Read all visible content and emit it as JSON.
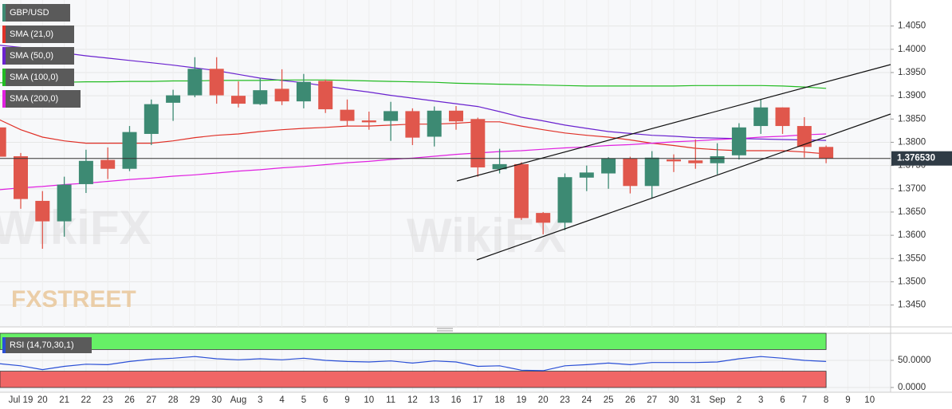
{
  "chart_data": [
    {
      "type": "candlestick",
      "title": "GBP/USD",
      "categories": [
        null,
        "Jul 19",
        "20",
        "21",
        "22",
        "23",
        "26",
        "27",
        "28",
        "29",
        "30",
        "Aug",
        "3",
        "4",
        "5",
        "6",
        "9",
        "10",
        "11",
        "12",
        "13",
        "16",
        "17",
        "18",
        "19",
        "20",
        "23",
        "24",
        "25",
        "26",
        "27",
        "30",
        "31",
        "Sep",
        "2",
        "3",
        "6",
        "7",
        "8",
        "9",
        "10"
      ],
      "open": [
        1.3832,
        1.377,
        1.3674,
        1.363,
        1.371,
        1.3762,
        1.3743,
        1.3818,
        1.3885,
        1.3901,
        1.3958,
        1.39,
        1.3882,
        1.3915,
        1.3888,
        1.3932,
        1.387,
        1.3847,
        1.3846,
        1.3867,
        1.3812,
        1.3868,
        1.385,
        1.3742,
        1.3753,
        1.3648,
        1.3627,
        1.3724,
        1.3733,
        1.3765,
        1.3706,
        1.3763,
        1.3761,
        1.3755,
        1.3772,
        1.3835,
        1.3875,
        1.3835,
        1.379,
        null,
        null
      ],
      "high": [
        1.386,
        1.3777,
        1.3695,
        1.3726,
        1.3784,
        1.3789,
        1.3835,
        1.3892,
        1.3913,
        1.3983,
        1.3983,
        1.3931,
        1.3938,
        1.3957,
        1.3947,
        1.3935,
        1.3892,
        1.3866,
        1.3887,
        1.3873,
        1.3877,
        1.3878,
        1.3853,
        1.3786,
        1.3757,
        1.365,
        1.3733,
        1.375,
        1.3768,
        1.3769,
        1.3781,
        1.3774,
        1.3806,
        1.3798,
        1.3841,
        1.3892,
        1.3875,
        1.3854,
        1.3793,
        null,
        null
      ],
      "low": [
        1.376,
        1.3657,
        1.3571,
        1.3597,
        1.3691,
        1.3721,
        1.3738,
        1.3794,
        1.3846,
        1.3897,
        1.3883,
        1.3875,
        1.388,
        1.388,
        1.3873,
        1.3863,
        1.3835,
        1.3827,
        1.3803,
        1.3794,
        1.3791,
        1.3827,
        1.3726,
        1.3733,
        1.3633,
        1.3602,
        1.3611,
        1.3695,
        1.37,
        1.369,
        1.3679,
        1.3736,
        1.3743,
        1.3731,
        1.3763,
        1.3818,
        1.3818,
        1.3767,
        1.3755,
        null,
        null
      ],
      "close": [
        1.3769,
        1.3678,
        1.363,
        1.3709,
        1.376,
        1.3743,
        1.3822,
        1.3882,
        1.3901,
        1.3958,
        1.3901,
        1.3883,
        1.3912,
        1.3888,
        1.393,
        1.3871,
        1.3846,
        1.3843,
        1.3867,
        1.381,
        1.3868,
        1.3845,
        1.3746,
        1.3753,
        1.3637,
        1.3627,
        1.3725,
        1.3735,
        1.3765,
        1.3706,
        1.3767,
        1.3759,
        1.3755,
        1.377,
        1.3832,
        1.3875,
        1.3835,
        1.379,
        1.3765,
        null,
        null
      ],
      "up_color": "#3d8a73",
      "down_color": "#e0574c",
      "series": [
        {
          "name": "SMA (21,0)",
          "color": "#e03027",
          "values": [
            1.3849,
            1.3827,
            1.3811,
            1.3803,
            1.3798,
            1.3798,
            1.3798,
            1.3798,
            1.3803,
            1.381,
            1.3815,
            1.3818,
            1.3823,
            1.3827,
            1.383,
            1.3832,
            1.3835,
            1.3835,
            1.3837,
            1.3839,
            1.3839,
            1.3841,
            1.3844,
            1.3844,
            1.3835,
            1.3827,
            1.382,
            1.3815,
            1.3811,
            1.3805,
            1.3798,
            1.3793,
            1.3787,
            1.3784,
            1.3782,
            1.3782,
            1.3782,
            1.3779,
            1.3775,
            null,
            null
          ]
        },
        {
          "name": "SMA (50,0)",
          "color": "#6a22cf",
          "values": [
            1.4009,
            1.4004,
            1.3998,
            1.3992,
            1.3986,
            1.3981,
            1.3976,
            1.3971,
            1.3966,
            1.396,
            1.3954,
            1.3946,
            1.3938,
            1.3933,
            1.3928,
            1.3921,
            1.3914,
            1.3908,
            1.3901,
            1.3895,
            1.3889,
            1.3883,
            1.3877,
            1.3866,
            1.3854,
            1.3846,
            1.3837,
            1.383,
            1.3823,
            1.3819,
            1.3815,
            1.3813,
            1.381,
            1.3809,
            1.3808,
            1.3807,
            1.3806,
            1.3805,
            1.3804,
            null,
            null
          ]
        },
        {
          "name": "SMA (100,0)",
          "color": "#22bb22",
          "values": [
            1.3928,
            1.3928,
            1.3929,
            1.3929,
            1.393,
            1.393,
            1.3931,
            1.3931,
            1.3932,
            1.3932,
            1.3933,
            1.3933,
            1.3933,
            1.3934,
            1.3934,
            1.3934,
            1.3933,
            1.3932,
            1.3931,
            1.393,
            1.3929,
            1.3927,
            1.3926,
            1.3925,
            1.3924,
            1.3923,
            1.3922,
            1.3921,
            1.3921,
            1.3921,
            1.3921,
            1.3921,
            1.3922,
            1.3922,
            1.3922,
            1.3922,
            1.3921,
            1.3919,
            1.3916,
            null,
            null
          ]
        },
        {
          "name": "SMA (200,0)",
          "color": "#e020e0",
          "values": [
            1.3698,
            1.3702,
            1.3705,
            1.3709,
            1.3712,
            1.3716,
            1.372,
            1.3723,
            1.3727,
            1.373,
            1.3734,
            1.3738,
            1.3741,
            1.3745,
            1.3748,
            1.3752,
            1.3756,
            1.3759,
            1.3763,
            1.3766,
            1.377,
            1.3774,
            1.3777,
            1.378,
            1.3782,
            1.3785,
            1.3788,
            1.379,
            1.3793,
            1.3795,
            1.3798,
            1.3801,
            1.3803,
            1.3806,
            1.3808,
            1.3811,
            1.3813,
            1.3816,
            1.3818,
            null,
            null
          ]
        }
      ],
      "last_price": {
        "value": 1.37653,
        "label": "1.376530"
      },
      "ylim": [
        1.3403,
        1.4106
      ],
      "yticks": [
        {
          "value": 1.345,
          "label": "1.3450"
        },
        {
          "value": 1.35,
          "label": "1.3500"
        },
        {
          "value": 1.355,
          "label": "1.3550"
        },
        {
          "value": 1.36,
          "label": "1.3600"
        },
        {
          "value": 1.365,
          "label": "1.3650"
        },
        {
          "value": 1.37,
          "label": "1.3700"
        },
        {
          "value": 1.375,
          "label": "1.3750"
        },
        {
          "value": 1.38,
          "label": "1.3800"
        },
        {
          "value": 1.385,
          "label": "1.3850"
        },
        {
          "value": 1.39,
          "label": "1.3900"
        },
        {
          "value": 1.395,
          "label": "1.3950"
        },
        {
          "value": 1.4,
          "label": "1.4000"
        },
        {
          "value": 1.405,
          "label": "1.4050"
        }
      ],
      "grid": true,
      "watermarks": [
        "FXSTREET",
        "WikiFX"
      ]
    },
    {
      "type": "line",
      "title": "RSI (14,70,30,1)",
      "series": [
        {
          "name": "RSI",
          "color": "#2a4fd6",
          "values": [
            44,
            40,
            33,
            39,
            43,
            42,
            48,
            52,
            54,
            57,
            53,
            51,
            53,
            51,
            54,
            50,
            48,
            47,
            49,
            45,
            49,
            47,
            39,
            40,
            32,
            31,
            40,
            42,
            45,
            42,
            46,
            46,
            46,
            47,
            53,
            57,
            54,
            50,
            48,
            null,
            null
          ]
        }
      ],
      "bands": [
        {
          "from": 70,
          "to": 100,
          "color": "#66f066"
        },
        {
          "from": 0,
          "to": 30,
          "color": "#f06666"
        }
      ],
      "ylim": [
        -8.8,
        100
      ],
      "yticks": [
        {
          "value": 50,
          "label": "50.0000"
        },
        {
          "value": 0,
          "label": "0.0000"
        }
      ]
    }
  ]
}
